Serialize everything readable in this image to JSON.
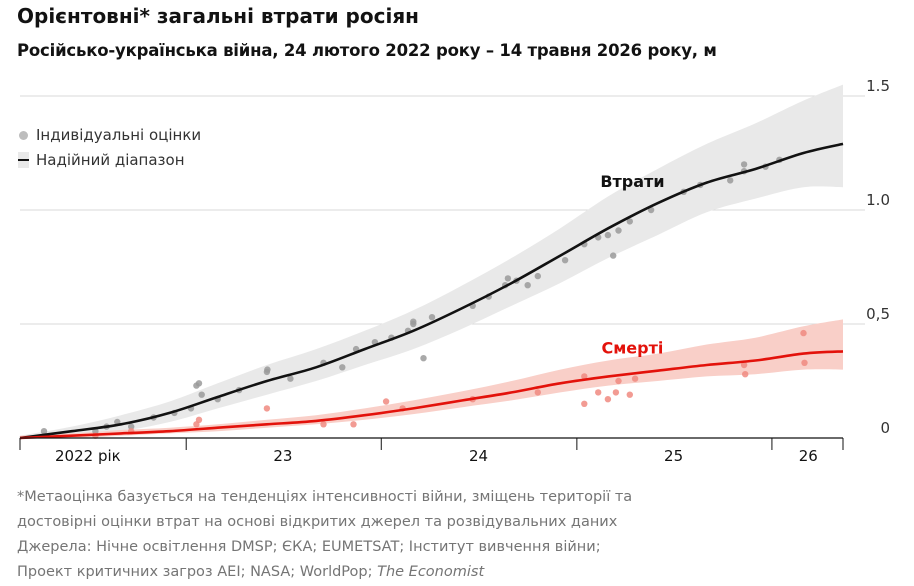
{
  "header": {
    "title": "Орієнтовні* загальні втрати росіян",
    "subtitle": "Російсько-українська війна, 24 лютого 2022 року – 14 травня 2026 року, м"
  },
  "legend": {
    "points_label": "Індивідуальні оцінки",
    "range_label": "Надійний діапазон"
  },
  "colors": {
    "casualties_line": "#121212",
    "casualties_band": "#e9e9e9",
    "casualties_dots": "#9a9a9a",
    "deaths_line": "#e3120b",
    "deaths_band": "#f9cfc8",
    "deaths_dots": "#f08a80",
    "grid": "#d9d9d9"
  },
  "chart_data": {
    "type": "line",
    "x_unit": "date",
    "xlim": [
      "2022-02-24",
      "2026-05-14"
    ],
    "ylim": [
      0,
      1.5
    ],
    "yticks": [
      {
        "value": 0,
        "label": "0"
      },
      {
        "value": 0.5,
        "label": "0,5"
      },
      {
        "value": 1.0,
        "label": "1.0"
      },
      {
        "value": 1.5,
        "label": "1.5"
      }
    ],
    "xticks": [
      {
        "label": "2022 рік",
        "date": "2022-07-01"
      },
      {
        "label": "23",
        "date": "2023-07-01"
      },
      {
        "label": "24",
        "date": "2024-07-01"
      },
      {
        "label": "25",
        "date": "2025-07-01"
      },
      {
        "label": "26",
        "date": "2026-03-10"
      }
    ],
    "year_boundaries": [
      "2023-01-01",
      "2024-01-01",
      "2025-01-01",
      "2026-01-01"
    ],
    "grid": true,
    "legend_position": "top-left",
    "series": [
      {
        "name": "Втрати",
        "x": [
          "2022-02-24",
          "2022-06-01",
          "2022-09-01",
          "2022-12-01",
          "2023-03-01",
          "2023-06-01",
          "2023-09-01",
          "2023-12-01",
          "2024-03-01",
          "2024-06-01",
          "2024-09-01",
          "2024-12-01",
          "2025-03-01",
          "2025-06-01",
          "2025-09-01",
          "2025-12-01",
          "2026-03-01",
          "2026-05-14"
        ],
        "values": [
          0.0,
          0.03,
          0.06,
          0.11,
          0.18,
          0.25,
          0.31,
          0.39,
          0.47,
          0.57,
          0.68,
          0.8,
          0.92,
          1.03,
          1.12,
          1.18,
          1.25,
          1.29
        ],
        "lower": [
          0.0,
          0.01,
          0.03,
          0.07,
          0.13,
          0.19,
          0.25,
          0.32,
          0.39,
          0.48,
          0.58,
          0.68,
          0.79,
          0.89,
          0.99,
          1.05,
          1.1,
          1.1
        ],
        "upper": [
          0.01,
          0.05,
          0.1,
          0.16,
          0.24,
          0.32,
          0.39,
          0.47,
          0.56,
          0.67,
          0.79,
          0.92,
          1.06,
          1.18,
          1.29,
          1.38,
          1.48,
          1.55
        ]
      },
      {
        "name": "Смерті",
        "x": [
          "2022-02-24",
          "2022-06-01",
          "2022-09-01",
          "2022-12-01",
          "2023-03-01",
          "2023-06-01",
          "2023-09-01",
          "2023-12-01",
          "2024-03-01",
          "2024-06-01",
          "2024-09-01",
          "2024-12-01",
          "2025-03-01",
          "2025-06-01",
          "2025-09-01",
          "2025-12-01",
          "2026-03-01",
          "2026-05-14"
        ],
        "values": [
          0.0,
          0.01,
          0.02,
          0.03,
          0.045,
          0.06,
          0.075,
          0.1,
          0.13,
          0.165,
          0.2,
          0.24,
          0.27,
          0.295,
          0.32,
          0.34,
          0.37,
          0.38
        ],
        "lower": [
          0.0,
          0.0,
          0.01,
          0.02,
          0.03,
          0.045,
          0.06,
          0.08,
          0.105,
          0.135,
          0.165,
          0.2,
          0.23,
          0.25,
          0.27,
          0.28,
          0.3,
          0.3
        ],
        "upper": [
          0.01,
          0.02,
          0.035,
          0.045,
          0.06,
          0.08,
          0.1,
          0.13,
          0.165,
          0.205,
          0.25,
          0.3,
          0.34,
          0.37,
          0.41,
          0.44,
          0.49,
          0.52
        ]
      }
    ],
    "annotations": [
      {
        "text": "Втрати",
        "x": "2025-04-15",
        "y": 1.1
      },
      {
        "text": "Смерті",
        "x": "2025-04-15",
        "y": 0.37
      }
    ],
    "points": [
      {
        "series": "Втрати",
        "values": [
          [
            "2022-04-10",
            0.03
          ],
          [
            "2022-07-15",
            0.03
          ],
          [
            "2022-08-05",
            0.05
          ],
          [
            "2022-08-25",
            0.07
          ],
          [
            "2022-09-20",
            0.05
          ],
          [
            "2022-11-01",
            0.09
          ],
          [
            "2022-12-10",
            0.11
          ],
          [
            "2023-01-10",
            0.13
          ],
          [
            "2023-01-20",
            0.23
          ],
          [
            "2023-01-25",
            0.24
          ],
          [
            "2023-01-30",
            0.19
          ],
          [
            "2023-03-01",
            0.17
          ],
          [
            "2023-04-10",
            0.21
          ],
          [
            "2023-06-01",
            0.29
          ],
          [
            "2023-06-02",
            0.3
          ],
          [
            "2023-07-15",
            0.26
          ],
          [
            "2023-09-15",
            0.33
          ],
          [
            "2023-10-20",
            0.31
          ],
          [
            "2023-11-15",
            0.39
          ],
          [
            "2023-12-20",
            0.42
          ],
          [
            "2024-01-20",
            0.44
          ],
          [
            "2024-02-20",
            0.47
          ],
          [
            "2024-03-01",
            0.5
          ],
          [
            "2024-03-01",
            0.51
          ],
          [
            "2024-03-20",
            0.35
          ],
          [
            "2024-04-05",
            0.53
          ],
          [
            "2024-06-20",
            0.58
          ],
          [
            "2024-07-20",
            0.62
          ],
          [
            "2024-08-20",
            0.67
          ],
          [
            "2024-08-25",
            0.7
          ],
          [
            "2024-09-10",
            0.69
          ],
          [
            "2024-10-01",
            0.67
          ],
          [
            "2024-10-20",
            0.71
          ],
          [
            "2024-12-10",
            0.78
          ],
          [
            "2025-01-15",
            0.85
          ],
          [
            "2025-02-10",
            0.88
          ],
          [
            "2025-02-28",
            0.89
          ],
          [
            "2025-03-10",
            0.8
          ],
          [
            "2025-03-20",
            0.91
          ],
          [
            "2025-04-10",
            0.95
          ],
          [
            "2025-05-20",
            1.0
          ],
          [
            "2025-07-20",
            1.08
          ],
          [
            "2025-08-20",
            1.11
          ],
          [
            "2025-10-15",
            1.13
          ],
          [
            "2025-11-10",
            1.17
          ],
          [
            "2025-11-10",
            1.2
          ],
          [
            "2025-12-20",
            1.19
          ],
          [
            "2026-01-15",
            1.22
          ]
        ]
      },
      {
        "series": "Смерті",
        "values": [
          [
            "2022-07-15",
            0.01
          ],
          [
            "2022-09-20",
            0.03
          ],
          [
            "2023-01-20",
            0.06
          ],
          [
            "2023-01-25",
            0.08
          ],
          [
            "2023-06-01",
            0.13
          ],
          [
            "2023-09-15",
            0.06
          ],
          [
            "2023-11-10",
            0.06
          ],
          [
            "2024-01-10",
            0.16
          ],
          [
            "2024-02-10",
            0.13
          ],
          [
            "2024-06-20",
            0.17
          ],
          [
            "2024-10-20",
            0.2
          ],
          [
            "2025-01-15",
            0.27
          ],
          [
            "2025-01-15",
            0.15
          ],
          [
            "2025-02-10",
            0.2
          ],
          [
            "2025-02-28",
            0.17
          ],
          [
            "2025-03-15",
            0.2
          ],
          [
            "2025-03-20",
            0.25
          ],
          [
            "2025-04-10",
            0.19
          ],
          [
            "2025-04-20",
            0.26
          ],
          [
            "2025-11-10",
            0.32
          ],
          [
            "2025-11-12",
            0.28
          ],
          [
            "2026-03-01",
            0.46
          ],
          [
            "2026-03-03",
            0.33
          ]
        ]
      }
    ]
  },
  "footnotes": {
    "line1": "*Метаоцінка базується на тенденціях інтенсивності війни, зміщень території та",
    "line2": "достовірні оцінки втрат на основі відкритих джерел та розвідувальних даних",
    "line3": "Джерела: Нічне освітлення DMSP; ЄКА; EUMETSAT; Інститут вивчення війни;",
    "line4_main": "Проект критичних загроз AEI; NASA; WorldPop; ",
    "line4_italic": "The Economist"
  }
}
